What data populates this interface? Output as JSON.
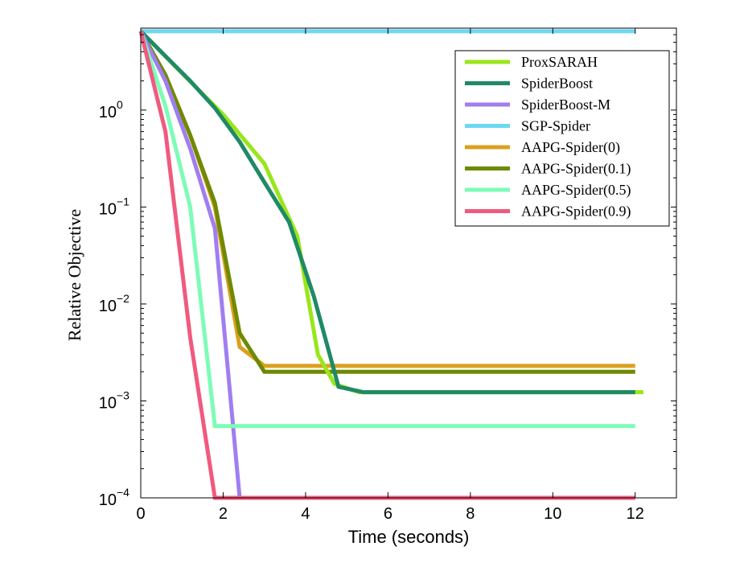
{
  "chart_data": {
    "type": "line",
    "title": "",
    "xlabel": "Time (seconds)",
    "ylabel": "Relative Objective",
    "yscale": "log",
    "xlim": [
      0,
      13
    ],
    "ylim": [
      0.0001,
      7
    ],
    "xticks": [
      0,
      2,
      4,
      6,
      8,
      10,
      12
    ],
    "yticks": [
      {
        "value": 0.0001,
        "base": "10",
        "exp": "−4"
      },
      {
        "value": 0.001,
        "base": "10",
        "exp": "−3"
      },
      {
        "value": 0.01,
        "base": "10",
        "exp": "−2"
      },
      {
        "value": 0.1,
        "base": "10",
        "exp": "−1"
      },
      {
        "value": 1,
        "base": "10",
        "exp": "0"
      }
    ],
    "legend_position": "top-right",
    "series": [
      {
        "name": "ProxSARAH",
        "color": "#99e61a",
        "x": [
          0,
          1,
          2,
          3,
          3.8,
          4.3,
          4.7,
          5.3,
          12.2
        ],
        "y": [
          6.5,
          2.4,
          0.9,
          0.28,
          0.05,
          0.003,
          0.0015,
          0.00123,
          0.00123
        ]
      },
      {
        "name": "SpiderBoost",
        "color": "#1f8a66",
        "x": [
          0,
          0.6,
          1.2,
          1.8,
          2.4,
          3.0,
          3.6,
          4.2,
          4.8,
          5.4,
          12
        ],
        "y": [
          6.5,
          3.6,
          2.0,
          1.05,
          0.47,
          0.18,
          0.07,
          0.012,
          0.0014,
          0.00123,
          0.00123
        ]
      },
      {
        "name": "SpiderBoost-M",
        "color": "#a07ef0",
        "x": [
          0,
          0.6,
          1.2,
          1.8,
          2.4,
          2.5,
          12
        ],
        "y": [
          6.5,
          2.0,
          0.4,
          0.06,
          0.0001,
          0.0001,
          0.0001
        ]
      },
      {
        "name": "SGP-Spider",
        "color": "#6cd8f2",
        "x": [
          0,
          12
        ],
        "y": [
          6.5,
          6.5
        ]
      },
      {
        "name": "AAPG-Spider(0)",
        "color": "#dba01e",
        "x": [
          0,
          0.6,
          1.2,
          1.8,
          2.4,
          3.0,
          12
        ],
        "y": [
          6.5,
          2.3,
          0.55,
          0.1,
          0.0036,
          0.0023,
          0.0023
        ]
      },
      {
        "name": "AAPG-Spider(0.1)",
        "color": "#6e8a00",
        "x": [
          0,
          0.6,
          1.2,
          1.8,
          2.4,
          3.0,
          12
        ],
        "y": [
          6.5,
          2.3,
          0.55,
          0.11,
          0.005,
          0.002,
          0.002
        ]
      },
      {
        "name": "AAPG-Spider(0.5)",
        "color": "#7dfcb7",
        "x": [
          0,
          0.6,
          1.2,
          1.8,
          12
        ],
        "y": [
          6.5,
          1.1,
          0.1,
          0.00055,
          0.00055
        ]
      },
      {
        "name": "AAPG-Spider(0.9)",
        "color": "#f05a7e",
        "x": [
          0,
          0.6,
          1.2,
          1.8,
          12
        ],
        "y": [
          6.5,
          0.6,
          0.0045,
          0.0001,
          0.0001
        ]
      }
    ]
  }
}
